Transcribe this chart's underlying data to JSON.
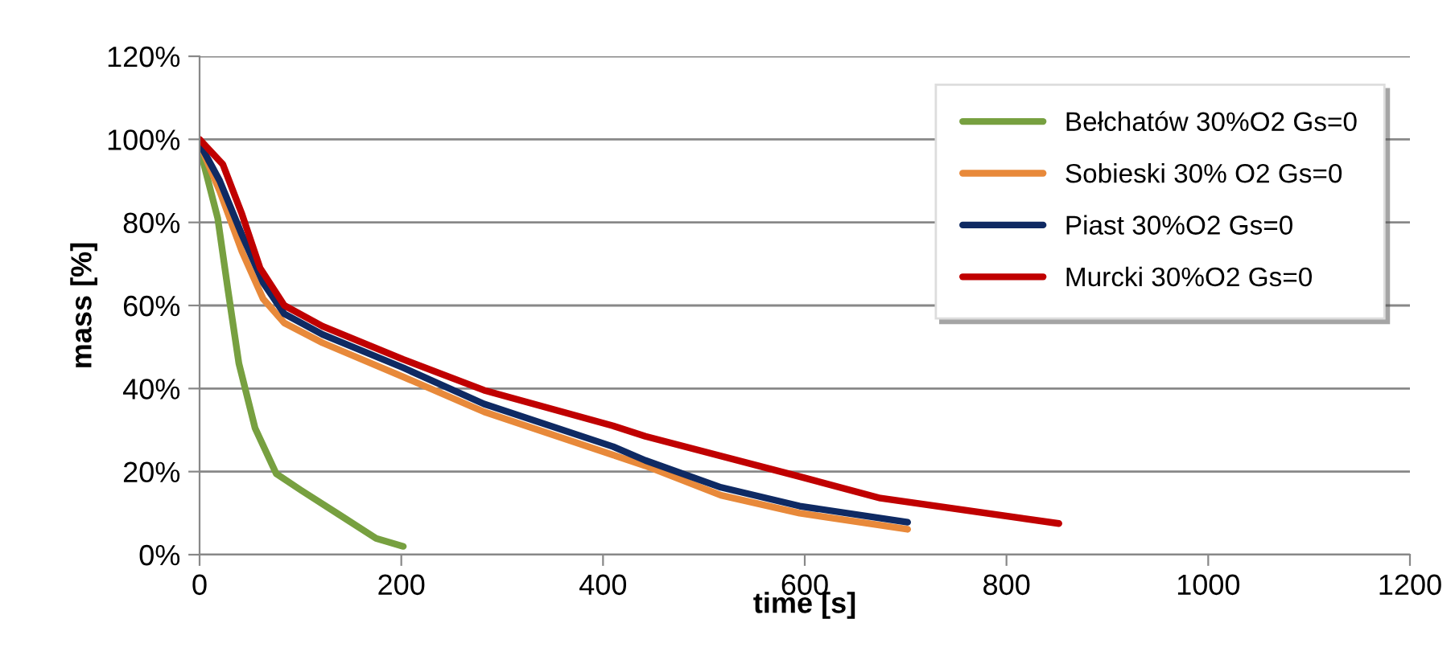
{
  "chart_data": {
    "type": "line",
    "xlabel": "time [s]",
    "ylabel": "mass [%]",
    "xlim": [
      0,
      1200
    ],
    "xticks": [
      0,
      200,
      400,
      600,
      800,
      1000,
      1200
    ],
    "ylim": [
      0,
      120
    ],
    "yticks": [
      {
        "value": 0,
        "label": "0%"
      },
      {
        "value": 20,
        "label": "20%"
      },
      {
        "value": 40,
        "label": "40%"
      },
      {
        "value": 60,
        "label": "60%"
      },
      {
        "value": 80,
        "label": "80%"
      },
      {
        "value": 100,
        "label": "100%"
      },
      {
        "value": 120,
        "label": "120%"
      }
    ],
    "grid": "y",
    "legend": "top right",
    "marker": "none",
    "line_style": "solid",
    "series": [
      {
        "name": "Bełchatów 30%O2 Gs=0",
        "color": "#77a040",
        "x": [
          0,
          18,
          28,
          39,
          55,
          76,
          100,
          138,
          175,
          202
        ],
        "values": [
          98,
          81,
          64,
          46,
          30.5,
          19.5,
          15.6,
          9.7,
          3.9,
          2
        ]
      },
      {
        "name": "Sobieski 30% O2 Gs=0",
        "color": "#e8893a",
        "x": [
          0,
          20,
          42,
          63,
          84,
          122,
          202,
          282,
          410,
          442,
          517,
          595,
          702
        ],
        "values": [
          99,
          87.5,
          73,
          61.6,
          55.8,
          51,
          42.8,
          34.4,
          24,
          21.4,
          14.3,
          10,
          6.1
        ]
      },
      {
        "name": "Piast 30%O2 Gs=0",
        "color": "#0f2a63",
        "x": [
          0,
          20,
          42,
          63,
          84,
          122,
          202,
          282,
          410,
          442,
          517,
          595,
          702
        ],
        "values": [
          99,
          90,
          77,
          65.5,
          58,
          53,
          45,
          36.3,
          26,
          22.7,
          16.2,
          11.7,
          7.8
        ]
      },
      {
        "name": "Murcki 30%O2 Gs=0",
        "color": "#c00000",
        "x": [
          0,
          23,
          42,
          60,
          84,
          122,
          202,
          282,
          410,
          442,
          595,
          675,
          852
        ],
        "values": [
          100,
          94,
          82,
          69,
          60,
          55,
          47,
          39.6,
          31,
          28.5,
          18.8,
          13.6,
          7.5
        ]
      }
    ]
  }
}
